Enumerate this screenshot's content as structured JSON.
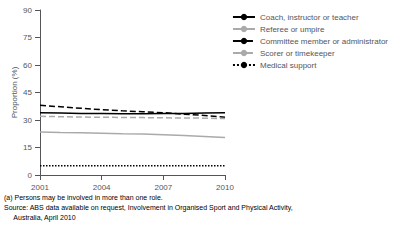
{
  "chart_data": {
    "type": "line",
    "x": [
      2001,
      2002,
      2003,
      2004,
      2005,
      2006,
      2007,
      2008,
      2009,
      2010
    ],
    "series": [
      {
        "name": "Coach, instructor or teacher",
        "color": "#000000",
        "line_style": "solid",
        "values": [
          34.0,
          33.8,
          33.6,
          33.5,
          33.4,
          33.4,
          33.5,
          33.6,
          33.8,
          34.0
        ]
      },
      {
        "name": "Referee or umpire",
        "color": "#aaaaaa",
        "line_style": "solid",
        "values": [
          23.5,
          23.2,
          23.0,
          22.8,
          22.5,
          22.3,
          22.0,
          21.5,
          21.0,
          20.5
        ]
      },
      {
        "name": "Committee member or administrator",
        "color": "#000000",
        "line_style": "dashed",
        "values": [
          38.0,
          37.2,
          36.4,
          35.6,
          35.0,
          34.5,
          34.0,
          33.2,
          32.5,
          31.5
        ]
      },
      {
        "name": "Scorer or timekeeper",
        "color": "#aaaaaa",
        "line_style": "dashed",
        "values": [
          32.0,
          31.8,
          31.6,
          31.5,
          31.4,
          31.3,
          31.2,
          31.1,
          31.0,
          30.8
        ]
      },
      {
        "name": "Medical support",
        "color": "#000000",
        "line_style": "dotted",
        "values": [
          5.0,
          5.0,
          5.0,
          5.0,
          5.0,
          5.0,
          5.0,
          5.0,
          5.0,
          5.0
        ]
      }
    ],
    "ylabel": "Proportion (%)",
    "xlim": [
      2001,
      2010
    ],
    "xticks": [
      2001,
      2004,
      2007,
      2010
    ],
    "ylim": [
      0,
      90
    ],
    "yticks": [
      0,
      15,
      30,
      45,
      60,
      75,
      90
    ],
    "grid": false,
    "legend": "upper right",
    "annotations": [
      "(a) Persons may be involved in more than one role.",
      "Source: ABS data available on request, Involvement in Organised Sport and Physical Activity,",
      "     Australia, April 2010"
    ]
  }
}
